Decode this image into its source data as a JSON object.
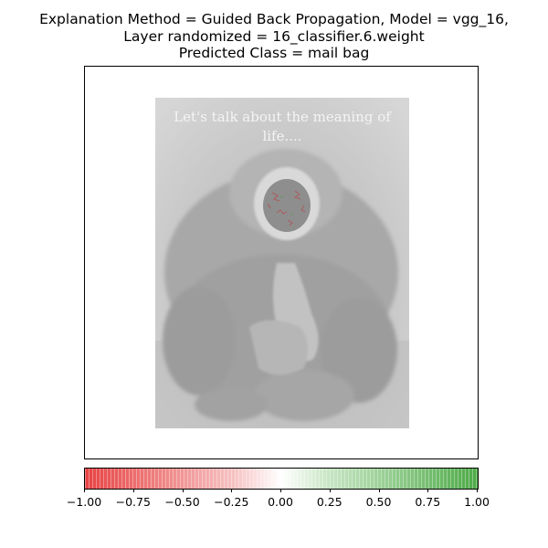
{
  "title_lines": [
    "Explanation Method = Guided Back Propagation, Model = vgg_16,",
    "Layer randomized = 16_classifier.6.weight",
    "Predicted Class = mail bag"
  ],
  "image": {
    "caption_line1": "Let's talk about the meaning of",
    "caption_line2": "life....",
    "subject": "gibbon"
  },
  "colorbar": {
    "ticks": [
      "−1.00",
      "−0.75",
      "−0.50",
      "−0.25",
      "0.00",
      "0.25",
      "0.50",
      "0.75",
      "1.00"
    ],
    "range": [
      -1.0,
      1.0
    ],
    "colors": {
      "negative": "#e74242",
      "center": "#ffffff",
      "positive": "#4daa47"
    }
  }
}
